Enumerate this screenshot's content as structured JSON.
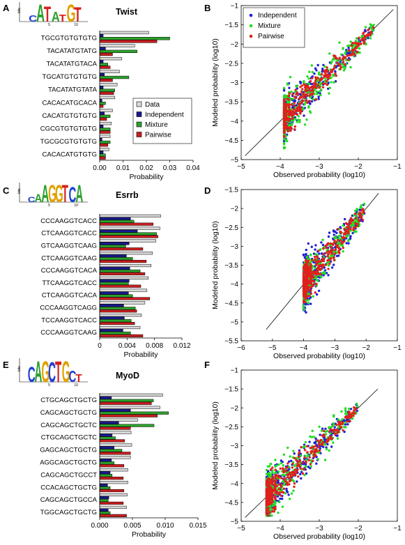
{
  "chart_data": [
    {
      "id": "A",
      "type": "bar",
      "orientation": "horizontal",
      "panel_label": "A",
      "title": "Twist",
      "xlabel": "Probability",
      "xlim": [
        0,
        0.04
      ],
      "xticks": [
        "0.00",
        "0.01",
        "0.02",
        "0.03",
        "0.04"
      ],
      "categories": [
        "TGCGTGTGTGTG",
        "TACATATGTATG",
        "TACATATGTACA",
        "TGCATGTGTGTG",
        "TACATATGTATA",
        "CACACATGCACA",
        "CACATGTGTGTG",
        "CGCGTGTGTGTG",
        "TGCGCGTGTGTG",
        "CACACATGTGTG"
      ],
      "series": [
        {
          "name": "Data",
          "color": "#d8d8d8",
          "values": [
            0.021,
            0.015,
            0.0095,
            0.0085,
            0.0075,
            0.0065,
            0.0055,
            0.005,
            0.0045,
            0.004
          ]
        },
        {
          "name": "Independent",
          "color": "#1a1a8c",
          "values": [
            0.0015,
            0.0025,
            0.0015,
            0.002,
            0.0015,
            0.001,
            0.002,
            0.0015,
            0.001,
            0.0015
          ]
        },
        {
          "name": "Mixture",
          "color": "#2ca02c",
          "values": [
            0.03,
            0.016,
            0.0035,
            0.0125,
            0.0065,
            0.0025,
            0.0045,
            0.0045,
            0.0045,
            0.0025
          ]
        },
        {
          "name": "Pairwise",
          "color": "#c81e1e",
          "values": [
            0.0245,
            0.0055,
            0.0045,
            0.0055,
            0.006,
            0.0015,
            0.003,
            0.0045,
            0.0035,
            0.0025
          ]
        }
      ],
      "legend": [
        "Data",
        "Independent",
        "Mixture",
        "Pairwise"
      ],
      "logo": {
        "bits_label": "bits",
        "ticks": [
          "5",
          "10"
        ],
        "letters": "CATATGT"
      }
    },
    {
      "id": "B",
      "type": "scatter",
      "panel_label": "B",
      "xlabel": "Observed probability (log10)",
      "ylabel": "Modeled probability (log10)",
      "xlim": [
        -5,
        -1
      ],
      "ylim": [
        -5,
        -1
      ],
      "xticks": [
        "−5",
        "−4",
        "−3",
        "−2",
        "−1"
      ],
      "yticks": [
        "−5",
        "−4.5",
        "−4",
        "−3.5",
        "−3",
        "−2.5",
        "−2",
        "−1.5",
        "−1"
      ],
      "legend": [
        "Independent",
        "Mixture",
        "Pairwise"
      ],
      "series_colors": {
        "Independent": "#1f1fd6",
        "Mixture": "#22dd22",
        "Pairwise": "#e0201c"
      },
      "diagonal": [
        -4.9,
        -1.1
      ],
      "sample": {
        "xmin": -3.9,
        "xmax": -1.6,
        "floor": -4.0,
        "spread": [
          0.45,
          0.55,
          0.35
        ]
      }
    },
    {
      "id": "C",
      "type": "bar",
      "orientation": "horizontal",
      "panel_label": "C",
      "title": "Esrrb",
      "xlabel": "Probability",
      "xlim": [
        0,
        0.012
      ],
      "xticks": [
        "0",
        "0.004",
        "0.008",
        "0.012"
      ],
      "categories": [
        "CCCAAGGTCACC",
        "CTCAAGGTCACC",
        "GTCAAGGTCAAG",
        "CTCAAGGTCAAG",
        "CCCAAGGTCACA",
        "TTCAAGGTCACC",
        "CTCAAGGTCACA",
        "CCCAAGGTCAGG",
        "TCCAAGGTCACC",
        "CCCAAGGTCAAG"
      ],
      "series": [
        {
          "name": "Data",
          "color": "#d8d8d8",
          "values": [
            0.0089,
            0.0088,
            0.0082,
            0.0077,
            0.0075,
            0.0071,
            0.0069,
            0.0066,
            0.0061,
            0.0059
          ]
        },
        {
          "name": "Independent",
          "color": "#1a1a8c",
          "values": [
            0.0045,
            0.0055,
            0.0043,
            0.0039,
            0.0044,
            0.0043,
            0.0042,
            0.0035,
            0.0036,
            0.0034
          ]
        },
        {
          "name": "Mixture",
          "color": "#2ca02c",
          "values": [
            0.005,
            0.0083,
            0.0038,
            0.0048,
            0.0059,
            0.0042,
            0.0048,
            0.0052,
            0.0046,
            0.0045
          ]
        },
        {
          "name": "Pairwise",
          "color": "#c81e1e",
          "values": [
            0.0078,
            0.0085,
            0.0063,
            0.0068,
            0.0066,
            0.006,
            0.0073,
            0.0054,
            0.0051,
            0.0063
          ]
        }
      ],
      "logo": {
        "bits_label": "bits",
        "ticks": [
          "5",
          "10"
        ],
        "letters": "CAAGGTCA"
      }
    },
    {
      "id": "D",
      "type": "scatter",
      "panel_label": "D",
      "xlabel": "Observed probability (log10)",
      "ylabel": "Modeled probability (log10)",
      "xlim": [
        -6,
        -1
      ],
      "ylim": [
        -5.5,
        -1.5
      ],
      "xticks": [
        "−6",
        "−5",
        "−4",
        "−3",
        "−2",
        "−1"
      ],
      "yticks": [
        "−5.5",
        "−5",
        "−4.5",
        "−4",
        "−3.5",
        "−3",
        "−2.5",
        "−2",
        "−1.5"
      ],
      "diagonal": [
        -5.2,
        -1.6
      ],
      "sample": {
        "xmin": -4.0,
        "xmax": -2.05,
        "floor": -4.0,
        "spread": [
          0.55,
          0.45,
          0.35
        ]
      }
    },
    {
      "id": "E",
      "type": "bar",
      "orientation": "horizontal",
      "panel_label": "E",
      "title": "MyoD",
      "xlabel": "Probability",
      "xlim": [
        0,
        0.015
      ],
      "xticks": [
        "0.000",
        "0.005",
        "0.010",
        "0.015"
      ],
      "categories": [
        "CTGCAGCTGCTG",
        "CAGCAGCTGCTG",
        "CAGCAGCTGCTC",
        "CTGCAGCTGCTC",
        "GAGCAGCTGCTG",
        "AGGCAGCTGCTG",
        "CAGCAGCTGCCT",
        "CCACAGCTGCTG",
        "CAGCAGCTGCCA",
        "TGGCAGCTGCTG"
      ],
      "series": [
        {
          "name": "Data",
          "color": "#d8d8d8",
          "values": [
            0.0096,
            0.0092,
            0.0058,
            0.0048,
            0.0049,
            0.0047,
            0.0043,
            0.0043,
            0.0042,
            0.0041
          ]
        },
        {
          "name": "Independent",
          "color": "#1a1a8c",
          "values": [
            0.0018,
            0.0047,
            0.0029,
            0.0019,
            0.0022,
            0.0018,
            0.0016,
            0.0012,
            0.0014,
            0.0013
          ]
        },
        {
          "name": "Mixture",
          "color": "#2ca02c",
          "values": [
            0.0082,
            0.0105,
            0.0083,
            0.0024,
            0.0034,
            0.0022,
            0.0019,
            0.0016,
            0.0013,
            0.0016
          ]
        },
        {
          "name": "Pairwise",
          "color": "#c81e1e",
          "values": [
            0.0079,
            0.0088,
            0.0047,
            0.0038,
            0.0047,
            0.0037,
            0.0036,
            0.0037,
            0.0036,
            0.0041
          ]
        }
      ],
      "logo": {
        "bits_label": "bits",
        "ticks": [
          "5",
          "10"
        ],
        "letters": "CAGCTGCT"
      }
    },
    {
      "id": "F",
      "type": "scatter",
      "panel_label": "F",
      "xlabel": "Observed probability (log10)",
      "ylabel": "Modeled probability (log10)",
      "xlim": [
        -5,
        -1
      ],
      "ylim": [
        -5,
        -1
      ],
      "xticks": [
        "−5",
        "−4",
        "−3",
        "−2",
        "−1"
      ],
      "yticks": [
        "−5",
        "−4.5",
        "−4",
        "−3.5",
        "−3",
        "−2.5",
        "−2",
        "−1.5",
        "−1"
      ],
      "diagonal": [
        -4.9,
        -1.5
      ],
      "sample": {
        "xmin": -4.35,
        "xmax": -2.0,
        "floor": -4.35,
        "spread": [
          0.45,
          0.55,
          0.35
        ]
      }
    }
  ]
}
